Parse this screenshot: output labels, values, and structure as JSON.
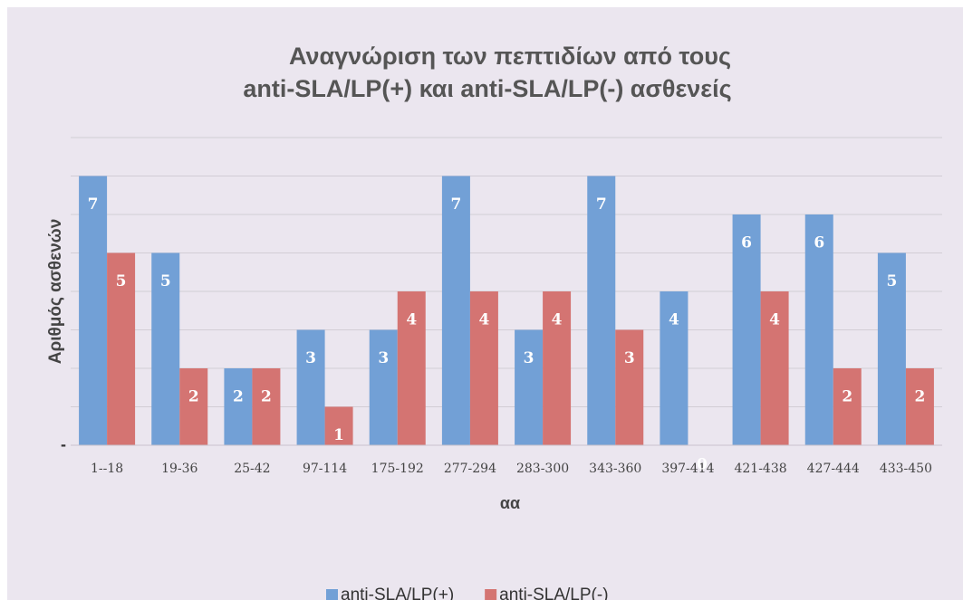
{
  "chart_data": {
    "type": "bar",
    "title": [
      "Αναγνώριση των πεπτιδίων από τους",
      "anti-SLA/LP(+) και anti-SLA/LP(-) ασθενείς"
    ],
    "x_label": "αα",
    "y_label": "Αριθμός ασθενών",
    "categories": [
      "1--18",
      "19-36",
      "25-42",
      "97-114",
      "175-192",
      "277-294",
      "283-300",
      "343-360",
      "397-414",
      "421-438",
      "427-444",
      "433-450"
    ],
    "series": [
      {
        "name": "anti-SLA/LP(+)",
        "color": "#72a0d6",
        "values": [
          7,
          5,
          2,
          3,
          3,
          7,
          3,
          7,
          4,
          6,
          6,
          5
        ]
      },
      {
        "name": "anti-SLA/LP(-)",
        "color": "#d47472",
        "values": [
          5,
          2,
          2,
          1,
          4,
          4,
          4,
          3,
          0,
          4,
          2,
          2
        ]
      }
    ],
    "ylim": [
      0,
      8
    ],
    "yticks": [
      {
        "value": 0,
        "label": "-"
      },
      {
        "value": 1,
        "label": null
      },
      {
        "value": 2,
        "label": null
      },
      {
        "value": 3,
        "label": null
      },
      {
        "value": 4,
        "label": null
      },
      {
        "value": 5,
        "label": null
      },
      {
        "value": 6,
        "label": null
      },
      {
        "value": 7,
        "label": null
      },
      {
        "value": 8,
        "label": null
      }
    ],
    "grid": true,
    "legend": "bottom"
  }
}
